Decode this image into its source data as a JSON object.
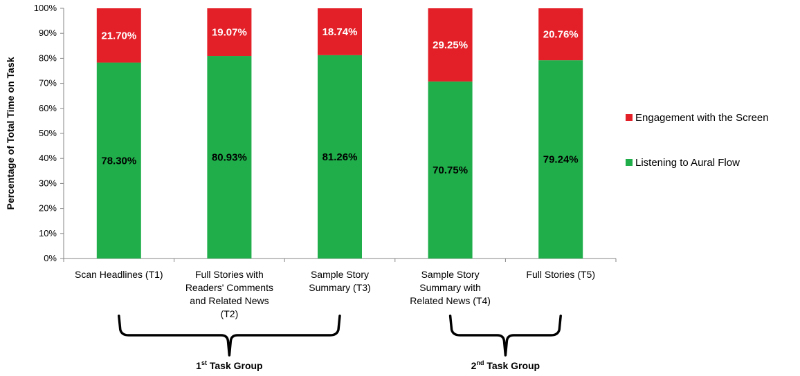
{
  "chart_data": {
    "type": "bar",
    "stacked": true,
    "ylabel": "Percentage of Total Time on Task",
    "ylim": [
      0,
      100
    ],
    "yticks": [
      "0%",
      "10%",
      "20%",
      "30%",
      "40%",
      "50%",
      "60%",
      "70%",
      "80%",
      "90%",
      "100%"
    ],
    "categories": [
      [
        "Scan Headlines (T1)"
      ],
      [
        "Full Stories with",
        "Readers' Comments",
        "and Related News",
        "(T2)"
      ],
      [
        "Sample Story",
        "Summary (T3)"
      ],
      [
        "Sample Story",
        "Summary with",
        "Related News (T4)"
      ],
      [
        "Full Stories (T5)"
      ]
    ],
    "series": [
      {
        "name": "Listening to Aural Flow",
        "color": "#1fae4a",
        "values": [
          78.3,
          80.93,
          81.26,
          70.75,
          79.24
        ],
        "labels": [
          "78.30%",
          "80.93%",
          "81.26%",
          "70.75%",
          "79.24%"
        ]
      },
      {
        "name": "Engagement with the Screen",
        "color": "#e32028",
        "values": [
          21.7,
          19.07,
          18.74,
          29.25,
          20.76
        ],
        "labels": [
          "21.70%",
          "19.07%",
          "18.74%",
          "29.25%",
          "20.76%"
        ]
      }
    ],
    "legend_position": "right",
    "groups": [
      {
        "ordinal": "1",
        "sup": "st",
        "rest": " Task Group",
        "from": 0,
        "to": 2
      },
      {
        "ordinal": "2",
        "sup": "nd",
        "rest": " Task Group",
        "from": 3,
        "to": 4
      }
    ]
  }
}
